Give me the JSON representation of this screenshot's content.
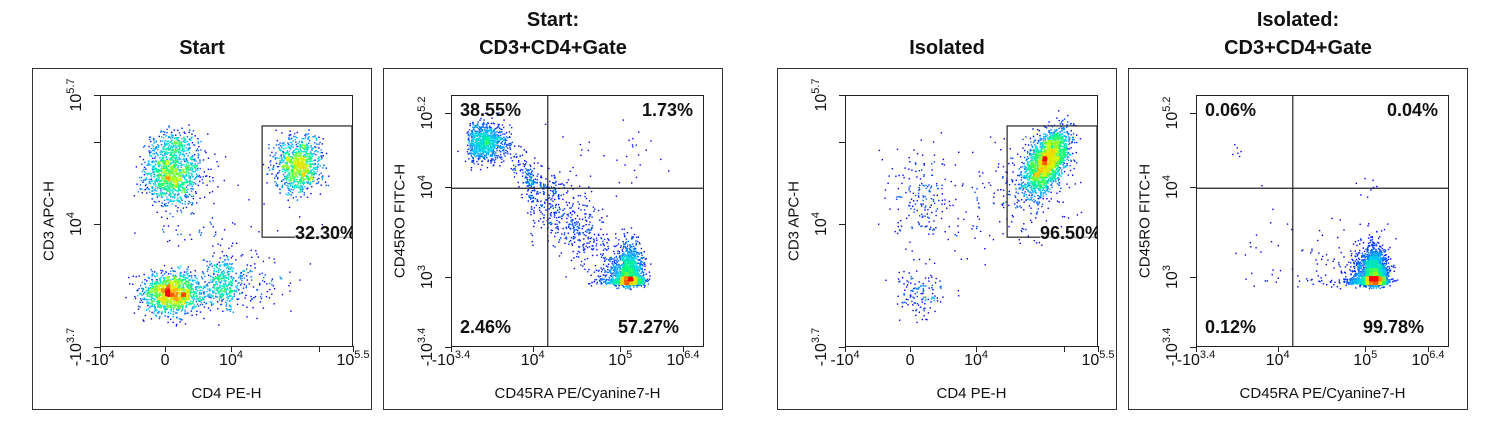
{
  "chart_data": [
    {
      "type": "scatter",
      "title": [
        "Start"
      ],
      "xlabel": "CD4 PE-H",
      "ylabel": "CD3 APC-H",
      "x_ticks": [
        {
          "value": -10000,
          "base": "-10",
          "exp": "4"
        },
        {
          "value": 0,
          "base": "0",
          "exp": ""
        },
        {
          "value": 10000,
          "base": "10",
          "exp": "4"
        },
        {
          "value": 100000,
          "base": "",
          "exp": ""
        },
        {
          "value": 316228,
          "base": "10",
          "exp": "5.5"
        }
      ],
      "y_ticks": [
        {
          "value": -5012,
          "base": "-10",
          "exp": "3.7"
        },
        {
          "value": 10000,
          "base": "10",
          "exp": "4"
        },
        {
          "value": 100000,
          "base": "",
          "exp": ""
        },
        {
          "value": 501187,
          "base": "10",
          "exp": "5.7"
        }
      ],
      "gate": {
        "x": [
          22000,
          316228
        ],
        "y": [
          4300,
          180000
        ],
        "label": "32.30%"
      },
      "populations": [
        {
          "x": 50,
          "y": 0,
          "sd_x": 0.45,
          "sd_y": 0.3,
          "n": 1400
        },
        {
          "x": 6000,
          "y": 100,
          "sd_x": 0.35,
          "sd_y": 0.4,
          "n": 500
        },
        {
          "x": 50,
          "y": 41700,
          "sd_x": 0.42,
          "sd_y": 0.18,
          "n": 1100
        },
        {
          "x": 50,
          "y": 100000,
          "sd_x": 0.35,
          "sd_y": 0.1,
          "n": 200
        },
        {
          "x": 57000,
          "y": 54000,
          "sd_x": 0.13,
          "sd_y": 0.16,
          "n": 1000
        },
        {
          "x": 3000,
          "y": 10000,
          "sd_x": 0.9,
          "sd_y": 0.5,
          "n": 60
        }
      ],
      "colors": {
        "density": [
          "#0000ff",
          "#00c8ff",
          "#00ff80",
          "#c8ff00",
          "#ffc800",
          "#ff0000"
        ]
      }
    },
    {
      "type": "scatter",
      "title": [
        "Start:",
        "CD3+CD4+Gate"
      ],
      "xlabel": "CD45RA PE/Cyanine7-H",
      "ylabel": "CD45RO FITC-H",
      "x_ticks": [
        {
          "value": -2512,
          "base": "-10",
          "exp": "3.4"
        },
        {
          "value": 10000,
          "base": "10",
          "exp": "4"
        },
        {
          "value": 100000,
          "base": "10",
          "exp": "5"
        },
        {
          "value": 2500000,
          "base": "10",
          "exp": "6.4"
        }
      ],
      "y_ticks": [
        {
          "value": -2512,
          "base": "-10",
          "exp": "3.4"
        },
        {
          "value": 1000,
          "base": "10",
          "exp": "3"
        },
        {
          "value": 10000,
          "base": "10",
          "exp": "4"
        },
        {
          "value": 158489,
          "base": "10",
          "exp": "5.2"
        }
      ],
      "quadrant": {
        "x": 14500,
        "y": 10000,
        "labels": {
          "upper_left": "38.55%",
          "upper_right": "1.73%",
          "lower_left": "2.46%",
          "lower_right": "57.27%"
        }
      },
      "populations": [
        {
          "x": 150,
          "y": 56000,
          "sd_x": 0.33,
          "sd_y": 0.15,
          "n": 900
        },
        {
          "x": 19000,
          "y": 5800,
          "sd_x": 0.45,
          "sd_y": 0.4,
          "rho": -0.85,
          "n": 700
        },
        {
          "x": 140000,
          "y": 1000,
          "sd_x": 0.17,
          "sd_y": 0.17,
          "n": 1800
        },
        {
          "x": 100000,
          "y": 30000,
          "sd_x": 0.45,
          "sd_y": 0.3,
          "n": 35
        }
      ]
    },
    {
      "type": "scatter",
      "title": [
        "Isolated"
      ],
      "xlabel": "CD4 PE-H",
      "ylabel": "CD3 APC-H",
      "x_ticks": [
        {
          "value": -10000,
          "base": "-10",
          "exp": "4"
        },
        {
          "value": 0,
          "base": "0",
          "exp": ""
        },
        {
          "value": 10000,
          "base": "10",
          "exp": "4"
        },
        {
          "value": 100000,
          "base": "",
          "exp": ""
        },
        {
          "value": 316228,
          "base": "10",
          "exp": "5.5"
        }
      ],
      "y_ticks": [
        {
          "value": -5012,
          "base": "-10",
          "exp": "3.7"
        },
        {
          "value": 10000,
          "base": "10",
          "exp": "4"
        },
        {
          "value": 100000,
          "base": "",
          "exp": ""
        },
        {
          "value": 501187,
          "base": "10",
          "exp": "5.7"
        }
      ],
      "gate": {
        "x": [
          22000,
          316228
        ],
        "y": [
          4300,
          180000
        ],
        "label": "96.50%"
      },
      "populations": [
        {
          "x": 60000,
          "y": 60000,
          "sd_x": 0.13,
          "sd_y": 0.2,
          "rho": 0.5,
          "n": 2200
        },
        {
          "x": 30000,
          "y": 30000,
          "sd_x": 0.3,
          "sd_y": 0.3,
          "n": 150
        },
        {
          "x": 100,
          "y": 23000,
          "sd_x": 0.5,
          "sd_y": 0.3,
          "n": 180
        },
        {
          "x": 100,
          "y": 0,
          "sd_x": 0.4,
          "sd_y": 0.35,
          "n": 140
        },
        {
          "x": 5000,
          "y": 8000,
          "sd_x": 0.8,
          "sd_y": 0.5,
          "n": 40
        }
      ]
    },
    {
      "type": "scatter",
      "title": [
        "Isolated:",
        "CD3+CD4+Gate"
      ],
      "xlabel": "CD45RA PE/Cyanine7-H",
      "ylabel": "CD45RO FITC-H",
      "x_ticks": [
        {
          "value": -2512,
          "base": "-10",
          "exp": "3.4"
        },
        {
          "value": 10000,
          "base": "10",
          "exp": "4"
        },
        {
          "value": 100000,
          "base": "10",
          "exp": "5"
        },
        {
          "value": 2500000,
          "base": "10",
          "exp": "6.4"
        }
      ],
      "y_ticks": [
        {
          "value": -2512,
          "base": "-10",
          "exp": "3.4"
        },
        {
          "value": 1000,
          "base": "10",
          "exp": "3"
        },
        {
          "value": 10000,
          "base": "10",
          "exp": "4"
        },
        {
          "value": 158489,
          "base": "10",
          "exp": "5.2"
        }
      ],
      "quadrant": {
        "x": 14500,
        "y": 10000,
        "labels": {
          "upper_left": "0.06%",
          "upper_right": "0.04%",
          "lower_left": "0.12%",
          "lower_right": "99.78%"
        }
      },
      "populations": [
        {
          "x": 140000,
          "y": 1000,
          "sd_x": 0.15,
          "sd_y": 0.15,
          "n": 3500
        },
        {
          "x": 40000,
          "y": 1500,
          "sd_x": 0.3,
          "sd_y": 0.25,
          "n": 90
        },
        {
          "x": 2000,
          "y": 2500,
          "sd_x": 0.6,
          "sd_y": 0.35,
          "n": 18
        },
        {
          "x": 300,
          "y": 40000,
          "sd_x": 0.15,
          "sd_y": 0.05,
          "n": 6
        },
        {
          "x": 100000,
          "y": 12000,
          "sd_x": 0.1,
          "sd_y": 0.15,
          "n": 8
        }
      ]
    }
  ]
}
